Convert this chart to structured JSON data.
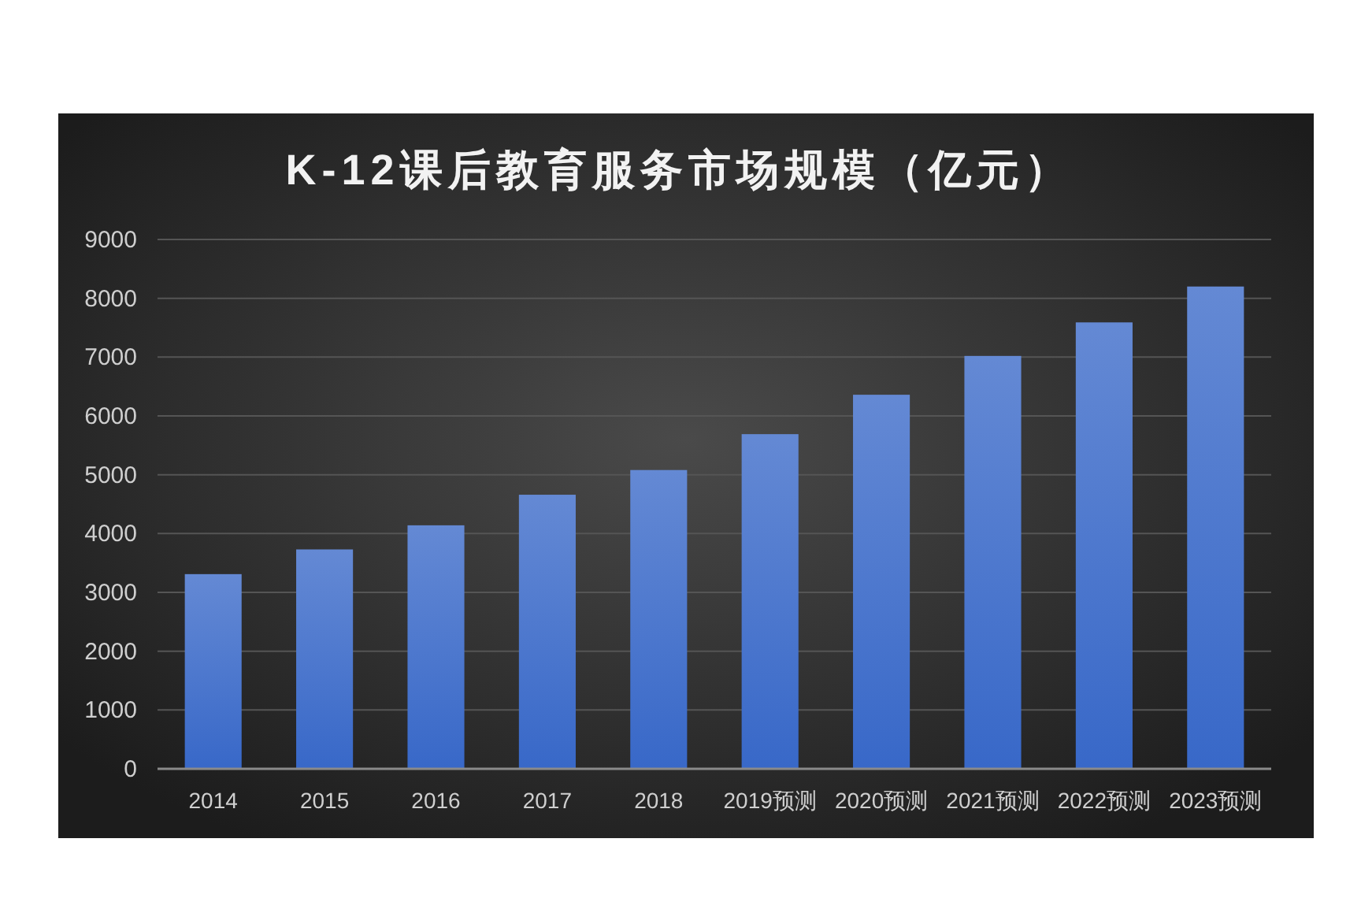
{
  "chart_data": {
    "type": "bar",
    "title": "K-12课后教育服务市场规模（亿元）",
    "categories": [
      "2014",
      "2015",
      "2016",
      "2017",
      "2018",
      "2019预测",
      "2020预测",
      "2021预测",
      "2022预测",
      "2023预测"
    ],
    "values": [
      3310,
      3730,
      4140,
      4660,
      5080,
      5690,
      6360,
      7020,
      7590,
      8200
    ],
    "color": "#3868c8",
    "ylim": [
      0,
      9000
    ],
    "yticks": [
      0,
      1000,
      2000,
      3000,
      4000,
      5000,
      6000,
      7000,
      8000,
      9000
    ],
    "grid": "y"
  }
}
